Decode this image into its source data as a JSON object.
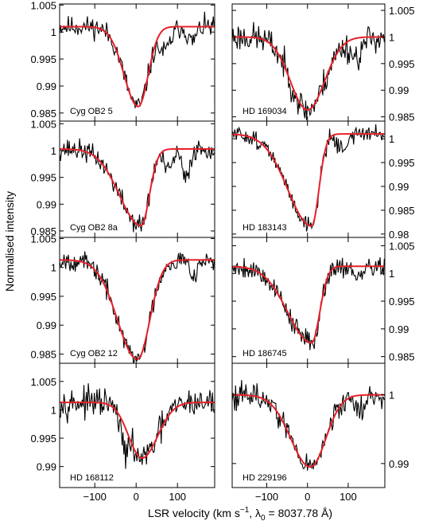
{
  "chart_data": {
    "type": "line",
    "ylabel": "Normalised intensity",
    "xlabel": "LSR velocity (km s",
    "xlabel_sup": "−1",
    "xlabel_mid": ", λ",
    "xlabel_sub": "0",
    "xlabel_end": " = 8037.78 Å)",
    "xlim": [
      -185,
      190
    ],
    "xticks": [
      -100,
      0,
      100
    ],
    "xtick_labels": [
      "−100",
      "0",
      "100"
    ],
    "series_colors": {
      "observed": "#000000",
      "fit": "#e8202a"
    },
    "panels": [
      {
        "label": "Cyg OB2 5",
        "column": "left",
        "row": 0,
        "ylim": [
          0.9835,
          1.0052
        ],
        "yticks": [
          0.985,
          0.99,
          0.995,
          1.0,
          1.005
        ],
        "ytick_labels": [
          "0.985",
          "0.99",
          "0.995",
          "1",
          "1.005"
        ],
        "fit": {
          "continuum": 1.001,
          "depth": 0.0148,
          "center": 5,
          "width_left": 34,
          "width_right": 24
        },
        "observed": {
          "continuum": 1.001,
          "depth": 0.0148,
          "center": 5,
          "width_left": 34,
          "width_right": 24,
          "noise": 0.0017,
          "seed": 11,
          "features": [
            {
              "center": 70,
              "depth": 0.0042,
              "width": 14
            },
            {
              "center": 135,
              "depth": 0.0028,
              "width": 10
            }
          ]
        }
      },
      {
        "label": "HD 169034",
        "column": "right",
        "row": 0,
        "ylim": [
          0.9842,
          1.0062
        ],
        "yticks": [
          0.985,
          0.99,
          0.995,
          1.0,
          1.005
        ],
        "ytick_labels": [
          "0.985",
          "0.99",
          "0.995",
          "1",
          "1.005"
        ],
        "fit": {
          "continuum": 1.0,
          "depth": 0.0137,
          "center": 0,
          "width_left": 42,
          "width_right": 42
        },
        "observed": {
          "continuum": 1.0,
          "depth": 0.0137,
          "center": 0,
          "width_left": 42,
          "width_right": 42,
          "noise": 0.0024,
          "seed": 23,
          "features": [
            {
              "center": 120,
              "depth": 0.0035,
              "width": 15
            }
          ]
        }
      },
      {
        "label": "Cyg OB2 8a",
        "column": "left",
        "row": 1,
        "ylim": [
          0.9838,
          1.0055
        ],
        "yticks": [
          0.985,
          0.99,
          0.995,
          1.0,
          1.005
        ],
        "ytick_labels": [
          "0.985",
          "0.99",
          "0.995",
          "1",
          "1.005"
        ],
        "fit": {
          "continuum": 1.0003,
          "depth": 0.0143,
          "center": 12,
          "width_left": 52,
          "width_right": 20
        },
        "observed": {
          "continuum": 1.0003,
          "depth": 0.0143,
          "center": 12,
          "width_left": 52,
          "width_right": 20,
          "noise": 0.0017,
          "seed": 37,
          "features": [
            {
              "center": 78,
              "depth": 0.0042,
              "width": 10
            },
            {
              "center": 120,
              "depth": 0.0058,
              "width": 9
            }
          ]
        }
      },
      {
        "label": "HD 183143",
        "column": "right",
        "row": 1,
        "ylim": [
          0.9793,
          1.0037
        ],
        "yticks": [
          0.98,
          0.985,
          0.99,
          0.995,
          1.0
        ],
        "ytick_labels": [
          "0.98",
          "0.985",
          "0.99",
          "0.995",
          "1"
        ],
        "fit": {
          "continuum": 1.001,
          "depth": 0.0193,
          "center": 10,
          "width_left": 58,
          "width_right": 18
        },
        "observed": {
          "continuum": 1.001,
          "depth": 0.0193,
          "center": 10,
          "width_left": 58,
          "width_right": 18,
          "noise": 0.0015,
          "seed": 51,
          "features": [
            {
              "center": 85,
              "depth": 0.0032,
              "width": 12
            }
          ]
        }
      },
      {
        "label": "Cyg OB2 12",
        "column": "left",
        "row": 2,
        "ylim": [
          0.9834,
          1.0052
        ],
        "yticks": [
          0.985,
          0.99,
          0.995,
          1.0,
          1.005
        ],
        "ytick_labels": [
          "0.985",
          "0.99",
          "0.995",
          "1",
          "1.005"
        ],
        "fit": {
          "continuum": 1.0013,
          "depth": 0.0172,
          "center": 3,
          "width_left": 48,
          "width_right": 30
        },
        "observed": {
          "continuum": 1.0013,
          "depth": 0.0172,
          "center": 3,
          "width_left": 48,
          "width_right": 30,
          "noise": 0.0015,
          "seed": 67,
          "features": [
            {
              "center": 140,
              "depth": 0.0022,
              "width": 10
            }
          ]
        }
      },
      {
        "label": "HD 186745",
        "column": "right",
        "row": 2,
        "ylim": [
          0.9838,
          1.0065
        ],
        "yticks": [
          0.985,
          0.99,
          0.995,
          1.0,
          1.005
        ],
        "ytick_labels": [
          "0.985",
          "0.99",
          "0.995",
          "1",
          "1.005"
        ],
        "fit": {
          "continuum": 1.0013,
          "depth": 0.0138,
          "center": 10,
          "width_left": 58,
          "width_right": 20
        },
        "observed": {
          "continuum": 1.0013,
          "depth": 0.0138,
          "center": 10,
          "width_left": 58,
          "width_right": 20,
          "noise": 0.0017,
          "seed": 79,
          "features": [
            {
              "center": 125,
              "depth": 0.0025,
              "width": 10
            }
          ]
        }
      },
      {
        "label": "HD 168112",
        "column": "left",
        "row": 3,
        "ylim": [
          0.9863,
          1.0082
        ],
        "yticks": [
          0.99,
          0.995,
          1.0,
          1.005
        ],
        "ytick_labels": [
          "0.99",
          "0.995",
          "1",
          "1.005"
        ],
        "fit": {
          "continuum": 1.0013,
          "depth": 0.0098,
          "center": 14,
          "width_left": 32,
          "width_right": 38
        },
        "observed": {
          "continuum": 1.0013,
          "depth": 0.0098,
          "center": 14,
          "width_left": 32,
          "width_right": 38,
          "noise": 0.0022,
          "seed": 97,
          "features": [
            {
              "center": -28,
              "depth": 0.0042,
              "width": 9
            }
          ]
        }
      },
      {
        "label": "HD 229196",
        "column": "right",
        "row": 3,
        "ylim": [
          0.9865,
          1.0046
        ],
        "yticks": [
          0.99,
          1.0
        ],
        "ytick_labels": [
          "0.99",
          "1"
        ],
        "fit": {
          "continuum": 1.0,
          "depth": 0.0105,
          "center": 7,
          "width_left": 48,
          "width_right": 38
        },
        "observed": {
          "continuum": 1.0,
          "depth": 0.0105,
          "center": 7,
          "width_left": 48,
          "width_right": 38,
          "noise": 0.0016,
          "seed": 113,
          "features": [
            {
              "center": 130,
              "depth": 0.0022,
              "width": 12
            }
          ]
        }
      }
    ]
  }
}
